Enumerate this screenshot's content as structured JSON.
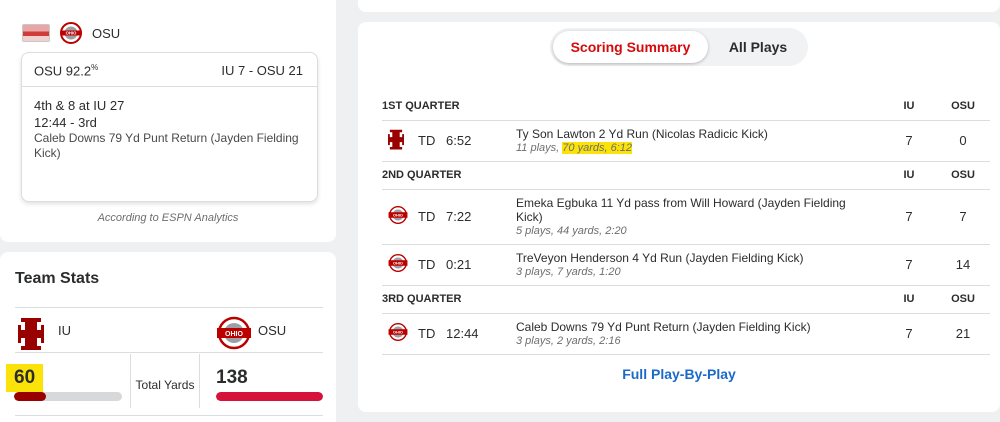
{
  "situation": {
    "team_abbr": "OSU",
    "win_prob": "OSU 92.2",
    "win_prob_suffix": "%",
    "score": "IU 7 - OSU 21",
    "down_distance": "4th & 8 at IU 27",
    "clock_quarter": "12:44 - 3rd",
    "last_play": "Caleb Downs 79 Yd Punt Return (Jayden Fielding Kick)",
    "analytics_note": "According to ESPN Analytics"
  },
  "team_stats": {
    "title": "Team Stats",
    "away_abbr": "IU",
    "home_abbr": "OSU",
    "stat_label": "Total Yards",
    "away_value": "60",
    "home_value": "138",
    "away_fill_fraction": 0.3,
    "home_fill_fraction": 1.0,
    "colors": {
      "iu": "#990000",
      "osu": "#d6113a",
      "track": "#d7d8da"
    }
  },
  "scoring": {
    "tabs": [
      {
        "label": "Scoring Summary",
        "active": true
      },
      {
        "label": "All Plays",
        "active": false
      }
    ],
    "col_away": "IU",
    "col_home": "OSU",
    "quarters": [
      {
        "label": "1ST QUARTER",
        "plays": [
          {
            "team_icon": "iu-logo-icon",
            "type": "TD",
            "time": "6:52",
            "title": "Ty Son Lawton 2 Yd Run (Nicolas Radicic Kick)",
            "sub_pre": "11 plays, ",
            "sub_hl": "70 yards, 6:12",
            "away": "7",
            "home": "0"
          }
        ]
      },
      {
        "label": "2ND QUARTER",
        "plays": [
          {
            "team_icon": "osu-logo-icon",
            "type": "TD",
            "time": "7:22",
            "title": "Emeka Egbuka 11 Yd pass from Will Howard (Jayden Fielding Kick)",
            "sub": "5 plays, 44 yards, 2:20",
            "away": "7",
            "home": "7"
          },
          {
            "team_icon": "osu-logo-icon",
            "type": "TD",
            "time": "0:21",
            "title": "TreVeyon Henderson 4 Yd Run (Jayden Fielding Kick)",
            "sub": "3 plays, 7 yards, 1:20",
            "away": "7",
            "home": "14"
          }
        ]
      },
      {
        "label": "3RD QUARTER",
        "plays": [
          {
            "team_icon": "osu-logo-icon",
            "type": "TD",
            "time": "12:44",
            "title": "Caleb Downs 79 Yd Punt Return (Jayden Fielding Kick)",
            "sub": "3 plays, 2 yards, 2:16",
            "away": "7",
            "home": "21"
          }
        ]
      }
    ],
    "full_pbp_link": "Full Play-By-Play"
  }
}
